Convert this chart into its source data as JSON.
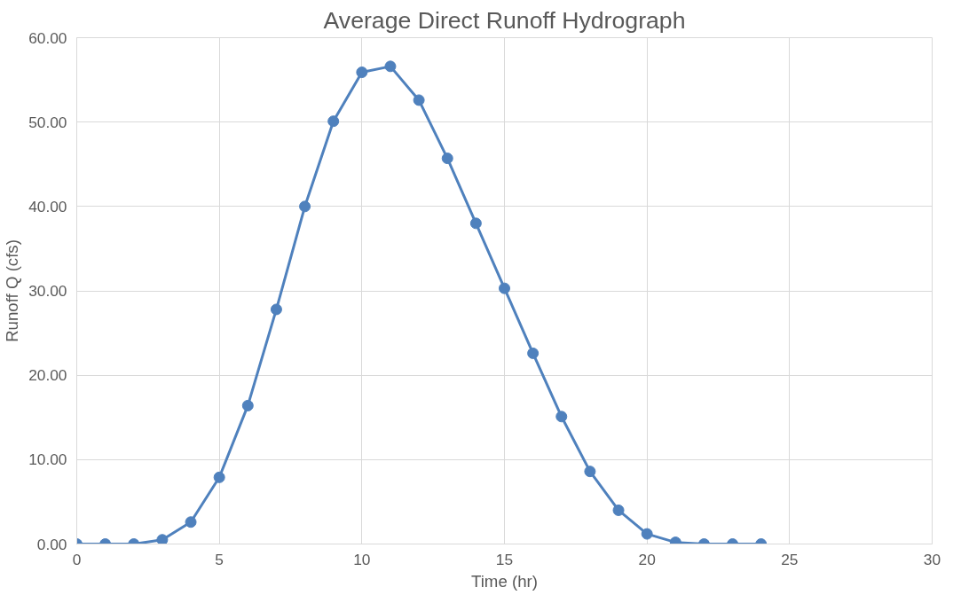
{
  "chart_data": {
    "type": "line",
    "title": "Average Direct Runoff Hydrograph",
    "xlabel": "Time (hr)",
    "ylabel": "Runoff Q (cfs)",
    "x": [
      0,
      1,
      2,
      3,
      4,
      5,
      6,
      7,
      8,
      9,
      10,
      11,
      12,
      13,
      14,
      15,
      16,
      17,
      18,
      19,
      20,
      21,
      22,
      23,
      24
    ],
    "series": [
      {
        "color": "#4f81bd",
        "values": [
          0,
          0,
          0,
          0.5,
          2.6,
          7.9,
          16.4,
          27.8,
          40.0,
          50.1,
          55.9,
          56.6,
          52.6,
          45.7,
          38.0,
          30.3,
          22.6,
          15.1,
          8.6,
          4.0,
          1.2,
          0.2,
          0,
          0,
          0
        ]
      }
    ],
    "xlim": [
      0,
      30
    ],
    "ylim": [
      0,
      60
    ],
    "xticks": [
      0,
      5,
      10,
      15,
      20,
      25,
      30
    ],
    "yticks": [
      {
        "value": 0,
        "label": "0.00"
      },
      {
        "value": 10,
        "label": "10.00"
      },
      {
        "value": 20,
        "label": "20.00"
      },
      {
        "value": 30,
        "label": "30.00"
      },
      {
        "value": 40,
        "label": "40.00"
      },
      {
        "value": 50,
        "label": "50.00"
      },
      {
        "value": 60,
        "label": "60.00"
      }
    ],
    "grid": true,
    "marker": "circle",
    "line_style": "solid"
  }
}
